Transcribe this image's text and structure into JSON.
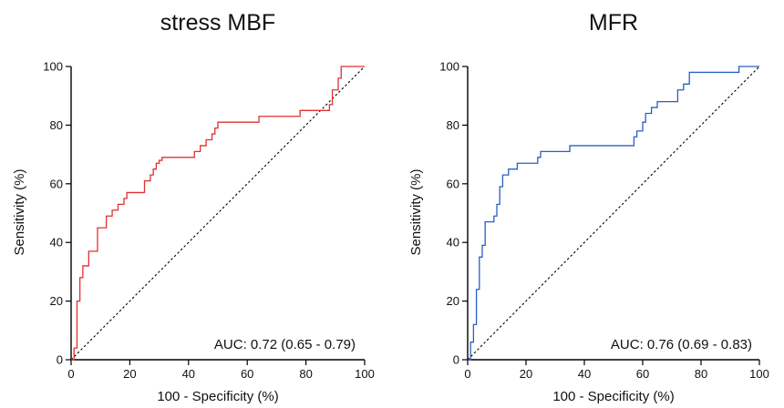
{
  "chart_data": [
    {
      "type": "line",
      "title": "stress MBF",
      "xlabel": "100 - Specificity (%)",
      "ylabel": "Sensitivity (%)",
      "xlim": [
        0,
        100
      ],
      "ylim": [
        0,
        100
      ],
      "xticks": [
        "0",
        "20",
        "40",
        "60",
        "80",
        "100"
      ],
      "yticks": [
        "0",
        "20",
        "40",
        "60",
        "80",
        "100"
      ],
      "annotation": "AUC: 0.72 (0.65 - 0.79)",
      "reference_line": "diagonal dashed",
      "color": "#e03030",
      "series": [
        {
          "x": [
            0,
            1,
            1,
            2,
            2,
            3,
            3,
            4,
            4,
            6,
            6,
            9,
            9,
            12,
            12,
            14,
            14,
            16,
            16,
            18,
            18,
            19,
            19,
            25,
            25,
            27,
            27,
            28,
            28,
            29,
            29,
            30,
            30,
            31,
            31,
            42,
            42,
            44,
            44,
            46,
            46,
            48,
            48,
            49,
            49,
            50,
            50,
            64,
            64,
            78,
            78,
            88,
            88,
            89,
            89,
            91,
            91,
            92,
            92,
            100
          ],
          "y": [
            0,
            0,
            4,
            4,
            20,
            20,
            28,
            28,
            32,
            32,
            37,
            37,
            45,
            45,
            49,
            49,
            51,
            51,
            53,
            53,
            55,
            55,
            57,
            57,
            61,
            61,
            63,
            63,
            65,
            65,
            67,
            67,
            68,
            68,
            69,
            69,
            71,
            71,
            73,
            73,
            75,
            75,
            77,
            77,
            79,
            79,
            81,
            81,
            83,
            83,
            85,
            85,
            87,
            87,
            92,
            92,
            96,
            96,
            100,
            100
          ]
        }
      ]
    },
    {
      "type": "line",
      "title": "MFR",
      "xlabel": "100 - Specificity (%)",
      "ylabel": "Sensitivity (%)",
      "xlim": [
        0,
        100
      ],
      "ylim": [
        0,
        100
      ],
      "xticks": [
        "0",
        "20",
        "40",
        "60",
        "80",
        "100"
      ],
      "yticks": [
        "0",
        "20",
        "40",
        "60",
        "80",
        "100"
      ],
      "annotation": "AUC: 0.76 (0.69 - 0.83)",
      "reference_line": "diagonal dashed",
      "color": "#2a5fc4",
      "series": [
        {
          "x": [
            0,
            1,
            1,
            2,
            2,
            3,
            3,
            4,
            4,
            5,
            5,
            6,
            6,
            9,
            9,
            10,
            10,
            11,
            11,
            12,
            12,
            14,
            14,
            17,
            17,
            23,
            23,
            24,
            24,
            25,
            25,
            26,
            26,
            35,
            35,
            57,
            57,
            58,
            58,
            60,
            60,
            61,
            61,
            62,
            62,
            63,
            63,
            64,
            64,
            65,
            65,
            67,
            67,
            72,
            72,
            74,
            74,
            76,
            76,
            93,
            93,
            100
          ],
          "y": [
            0,
            0,
            6,
            6,
            12,
            12,
            24,
            24,
            35,
            35,
            39,
            39,
            47,
            47,
            49,
            49,
            53,
            53,
            59,
            59,
            63,
            63,
            65,
            65,
            67,
            67,
            67,
            67,
            69,
            69,
            71,
            71,
            71,
            71,
            73,
            73,
            76,
            76,
            78,
            78,
            81,
            81,
            84,
            84,
            84,
            84,
            86,
            86,
            86,
            86,
            88,
            88,
            88,
            88,
            92,
            92,
            94,
            94,
            98,
            98,
            100,
            100
          ]
        }
      ]
    }
  ]
}
